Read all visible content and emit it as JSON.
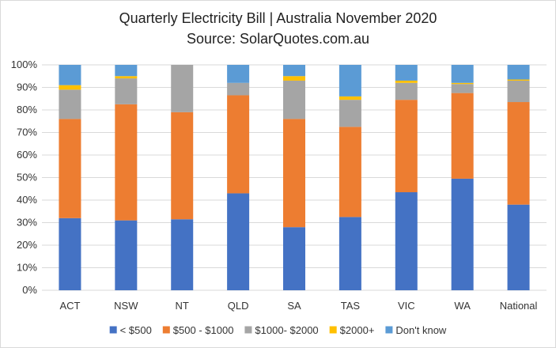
{
  "chart_data": {
    "type": "bar",
    "stacked": true,
    "title": "Quarterly Electricity Bill | Australia November 2020",
    "subtitle": "Source: SolarQuotes.com.au",
    "categories": [
      "ACT",
      "NSW",
      "NT",
      "QLD",
      "SA",
      "TAS",
      "VIC",
      "WA",
      "National"
    ],
    "ylim": [
      0,
      100
    ],
    "yticks": [
      "0%",
      "10%",
      "20%",
      "30%",
      "40%",
      "50%",
      "60%",
      "70%",
      "80%",
      "90%",
      "100%"
    ],
    "grid": true,
    "legend_position": "bottom",
    "series": [
      {
        "name": "< $500",
        "color": "#4472C4",
        "values": [
          32,
          31,
          31.5,
          43,
          28,
          32.5,
          43.5,
          49.5,
          38
        ]
      },
      {
        "name": "$500 - $1000",
        "color": "#ED7D31",
        "values": [
          44,
          51.5,
          47.5,
          43.5,
          48,
          40,
          41,
          38,
          45.5
        ]
      },
      {
        "name": "$1000- $2000",
        "color": "#A5A5A5",
        "values": [
          13,
          11.5,
          21,
          5.5,
          17,
          12,
          7.5,
          4,
          9.5
        ]
      },
      {
        "name": "$2000+",
        "color": "#FFC000",
        "values": [
          2,
          1,
          0,
          0,
          2,
          1.5,
          1,
          0.5,
          0.5
        ]
      },
      {
        "name": "Don't know",
        "color": "#5B9BD5",
        "values": [
          9,
          5,
          0,
          8,
          5,
          14,
          7,
          8,
          6.5
        ]
      }
    ]
  }
}
